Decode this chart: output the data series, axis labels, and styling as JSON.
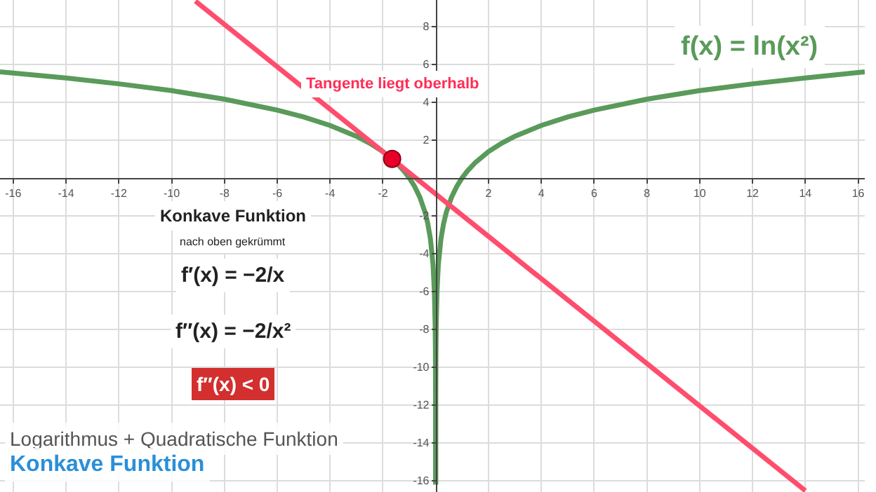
{
  "chart_data": {
    "type": "line",
    "annotations": [
      "Tangente liegt oberhalb",
      "Konkave Funktion",
      "nach oben gekrümmt",
      "f′(x) = −2/x",
      "f″(x) = −2/x²",
      "f″(x) < 0",
      "Logarithmus + Quadratische Funktion",
      "Konkave Funktion"
    ],
    "xlim": [
      -16.5,
      16.25
    ],
    "ylim": [
      -16.6,
      9.4
    ],
    "xticks": [
      -16,
      -14,
      -12,
      -10,
      -8,
      -6,
      -4,
      -2,
      2,
      4,
      6,
      8,
      10,
      12,
      14,
      16
    ],
    "yticks": [
      -16,
      -14,
      -12,
      -10,
      -8,
      -6,
      -4,
      -2,
      2,
      4,
      6,
      8
    ],
    "grid": true,
    "legend": false,
    "series": [
      {
        "name": "f(x) = ln(x²)",
        "color": "#5a9a5a",
        "x": [
          -16.5,
          -14,
          -12,
          -10,
          -8,
          -6,
          -5,
          -4,
          -3,
          -2.5,
          -2,
          -1.5,
          -1.2,
          -1,
          -0.8,
          -0.6,
          -0.4,
          -0.3,
          -0.2,
          -0.1,
          -0.05,
          -0.02,
          -0.01,
          -0.003,
          -0.0003,
          null,
          0.0003,
          0.003,
          0.01,
          0.02,
          0.05,
          0.1,
          0.2,
          0.3,
          0.4,
          0.6,
          0.8,
          1,
          1.2,
          1.5,
          2,
          2.5,
          3,
          4,
          5,
          6,
          8,
          10,
          12,
          14,
          16.25
        ],
        "values": [
          5.6,
          5.28,
          4.97,
          4.61,
          4.16,
          3.58,
          3.22,
          2.77,
          2.2,
          1.83,
          1.39,
          0.81,
          0.36,
          0,
          -0.45,
          -1.02,
          -1.83,
          -2.41,
          -3.22,
          -4.6,
          -6.0,
          -7.8,
          -9.2,
          -11.6,
          -16.2,
          null,
          -16.2,
          -11.6,
          -9.2,
          -7.8,
          -6.0,
          -4.6,
          -3.22,
          -2.41,
          -1.83,
          -1.02,
          -0.45,
          0,
          0.36,
          0.81,
          1.39,
          1.83,
          2.2,
          2.77,
          3.22,
          3.58,
          4.16,
          4.61,
          4.97,
          5.28,
          5.6
        ],
        "line_style": "solid"
      },
      {
        "color": "#ff4d6d",
        "x": [
          -9.1,
          14
        ],
        "values": [
          9.34,
          -16.53
        ],
        "line_style": "solid"
      },
      {
        "type": "scatter",
        "color": "#e8002a",
        "x": [
          -1.65
        ],
        "values": [
          1.0
        ],
        "marker": "circle"
      }
    ]
  }
}
